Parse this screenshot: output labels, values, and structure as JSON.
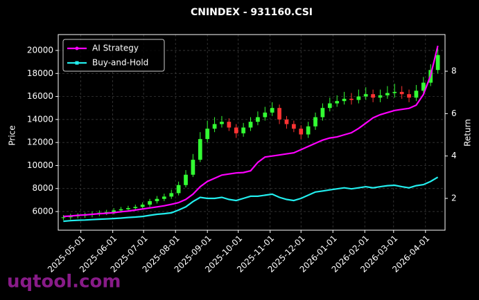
{
  "chart_data": {
    "type": "candlestick",
    "title": "CNINDEX - 931160.CSI",
    "ylabel": "Price",
    "y2label": "Return",
    "watermark": "uqtool.com",
    "x": [
      "2025-04-14",
      "2025-04-21",
      "2025-04-28",
      "2025-05-05",
      "2025-05-12",
      "2025-05-19",
      "2025-05-26",
      "2025-06-02",
      "2025-06-09",
      "2025-06-16",
      "2025-06-23",
      "2025-06-30",
      "2025-07-07",
      "2025-07-14",
      "2025-07-21",
      "2025-07-28",
      "2025-08-04",
      "2025-08-11",
      "2025-08-18",
      "2025-08-25",
      "2025-09-01",
      "2025-09-08",
      "2025-09-15",
      "2025-09-22",
      "2025-09-29",
      "2025-10-06",
      "2025-10-13",
      "2025-10-20",
      "2025-10-27",
      "2025-11-03",
      "2025-11-10",
      "2025-11-17",
      "2025-11-24",
      "2025-12-01",
      "2025-12-08",
      "2025-12-15",
      "2025-12-22",
      "2025-12-29",
      "2026-01-05",
      "2026-01-12",
      "2026-01-19",
      "2026-01-26",
      "2026-02-02",
      "2026-02-09",
      "2026-02-16",
      "2026-02-23",
      "2026-03-02",
      "2026-03-09",
      "2026-03-16",
      "2026-03-23",
      "2026-03-30",
      "2026-04-06",
      "2026-04-13"
    ],
    "open": [
      5450,
      5500,
      5600,
      5650,
      5700,
      5800,
      5900,
      5950,
      6100,
      6200,
      6300,
      6400,
      6600,
      6900,
      7100,
      7300,
      7600,
      8300,
      9200,
      10500,
      12300,
      13200,
      13600,
      13800,
      13300,
      12800,
      13300,
      13800,
      14200,
      14600,
      15000,
      14000,
      13600,
      13200,
      12700,
      13400,
      14200,
      15000,
      15400,
      15600,
      15800,
      15700,
      16000,
      16200,
      15900,
      16100,
      16300,
      16400,
      16200,
      15900,
      16500,
      17200,
      18300
    ],
    "high": [
      5700,
      5800,
      5850,
      5900,
      6000,
      6100,
      6150,
      6300,
      6400,
      6500,
      6600,
      6800,
      7100,
      7350,
      7550,
      7900,
      8600,
      9600,
      11000,
      12900,
      13900,
      14200,
      14300,
      14100,
      13600,
      13700,
      14200,
      14700,
      15100,
      15500,
      15300,
      14300,
      13900,
      13500,
      13800,
      14600,
      15400,
      15900,
      16100,
      16400,
      16300,
      16600,
      16800,
      16600,
      16600,
      16900,
      17100,
      16900,
      16600,
      17000,
      17700,
      18800,
      20200
    ],
    "low": [
      5250,
      5300,
      5400,
      5450,
      5500,
      5600,
      5700,
      5750,
      5900,
      6000,
      6100,
      6200,
      6400,
      6700,
      6900,
      7100,
      7400,
      8100,
      9000,
      10300,
      12000,
      12900,
      13300,
      13000,
      12400,
      12500,
      13000,
      13500,
      13900,
      14300,
      13600,
      13200,
      12900,
      12300,
      12400,
      13100,
      13900,
      14700,
      15100,
      15300,
      15300,
      15400,
      15700,
      15500,
      15500,
      15800,
      15900,
      15800,
      15500,
      15600,
      16200,
      16900,
      18000
    ],
    "close": [
      5500,
      5600,
      5650,
      5700,
      5800,
      5900,
      5950,
      6100,
      6200,
      6300,
      6400,
      6600,
      6900,
      7100,
      7300,
      7600,
      8300,
      9200,
      10500,
      12300,
      13200,
      13600,
      13800,
      13300,
      12800,
      13300,
      13800,
      14200,
      14600,
      15000,
      14000,
      13600,
      13200,
      12700,
      13400,
      14200,
      15000,
      15400,
      15600,
      15800,
      15700,
      16000,
      16200,
      15900,
      16100,
      16300,
      16400,
      16200,
      15900,
      16500,
      17200,
      18300,
      19600
    ],
    "up_color": "#33ff33",
    "down_color": "#ff3333",
    "series": [
      {
        "name": "AI Strategy",
        "color": "#ff00ff",
        "axis": "y2",
        "values": [
          1.15,
          1.17,
          1.2,
          1.22,
          1.25,
          1.28,
          1.3,
          1.33,
          1.37,
          1.4,
          1.45,
          1.5,
          1.55,
          1.6,
          1.65,
          1.72,
          1.8,
          1.95,
          2.2,
          2.55,
          2.8,
          2.95,
          3.1,
          3.15,
          3.2,
          3.22,
          3.3,
          3.7,
          3.95,
          4.0,
          4.05,
          4.1,
          4.15,
          4.3,
          4.45,
          4.6,
          4.75,
          4.85,
          4.9,
          5.0,
          5.1,
          5.3,
          5.55,
          5.8,
          5.95,
          6.05,
          6.15,
          6.2,
          6.25,
          6.4,
          6.9,
          7.8,
          9.2
        ]
      },
      {
        "name": "Buy-and-Hold",
        "color": "#22eeee",
        "axis": "y2",
        "values": [
          0.92,
          0.95,
          0.97,
          0.98,
          1.0,
          1.02,
          1.03,
          1.05,
          1.07,
          1.1,
          1.12,
          1.15,
          1.2,
          1.25,
          1.28,
          1.32,
          1.45,
          1.6,
          1.85,
          2.05,
          2.0,
          2.0,
          2.05,
          1.95,
          1.9,
          2.0,
          2.1,
          2.1,
          2.15,
          2.2,
          2.05,
          1.95,
          1.9,
          2.0,
          2.15,
          2.3,
          2.35,
          2.4,
          2.45,
          2.5,
          2.45,
          2.5,
          2.55,
          2.5,
          2.55,
          2.6,
          2.62,
          2.55,
          2.5,
          2.6,
          2.65,
          2.8,
          3.0
        ]
      }
    ],
    "xlim": [
      "2025-04-09",
      "2026-04-20"
    ],
    "xticks": [
      "2025-05-01",
      "2025-06-01",
      "2025-07-01",
      "2025-08-01",
      "2025-09-01",
      "2025-10-01",
      "2025-11-01",
      "2025-12-01",
      "2026-01-01",
      "2026-02-01",
      "2026-03-01",
      "2026-04-01"
    ],
    "ylim": [
      4380,
      21380
    ],
    "yticks": [
      6000,
      8000,
      10000,
      12000,
      14000,
      16000,
      18000,
      20000
    ],
    "y2lim": [
      0.5,
      9.73
    ],
    "y2ticks": [
      2,
      4,
      6,
      8
    ],
    "grid": true,
    "legend": "upper left"
  }
}
